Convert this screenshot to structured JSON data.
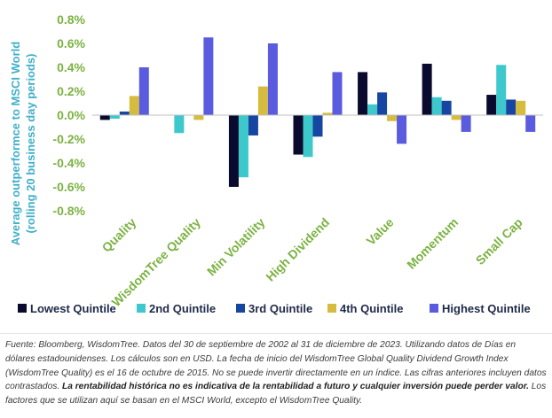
{
  "chart_data": {
    "type": "bar",
    "ylabel_line1": "Average outperformce to MSCI World",
    "ylabel_line2": "(rolling 20 business day periods)",
    "ylim": [
      -0.8,
      0.8
    ],
    "yticks": [
      "0.8%",
      "0.6%",
      "0.4%",
      "0.2%",
      "0.0%",
      "-0.2%",
      "-0.4%",
      "-0.6%",
      "-0.8%"
    ],
    "ytick_values": [
      0.8,
      0.6,
      0.4,
      0.2,
      0.0,
      -0.2,
      -0.4,
      -0.6,
      -0.8
    ],
    "categories": [
      "Quality",
      "WisdomTree Quality",
      "Min Volatility",
      "High Dividend",
      "Value",
      "Momentum",
      "Small Cap"
    ],
    "series": [
      {
        "name": "Lowest Quintile",
        "color": "#0a0a2e",
        "values": [
          -0.04,
          0.0,
          -0.6,
          -0.33,
          0.36,
          0.43,
          0.17
        ]
      },
      {
        "name": "2nd Quintile",
        "color": "#3dc8cc",
        "values": [
          -0.03,
          -0.15,
          -0.52,
          -0.35,
          0.09,
          0.15,
          0.42
        ]
      },
      {
        "name": "3rd Quintile",
        "color": "#1746a2",
        "values": [
          0.03,
          0.0,
          -0.17,
          -0.18,
          0.19,
          0.12,
          0.13
        ]
      },
      {
        "name": "4th Quintile",
        "color": "#d6bc3e",
        "values": [
          0.16,
          -0.04,
          0.24,
          0.02,
          -0.05,
          -0.04,
          0.12
        ]
      },
      {
        "name": "Highest Quintile",
        "color": "#5b5be0",
        "values": [
          0.4,
          0.65,
          0.6,
          0.36,
          -0.24,
          -0.14,
          -0.14
        ]
      }
    ]
  },
  "footnote": {
    "part1": "Fuente: Bloomberg, WisdomTree. Datos del 30 de septiembre de 2002 al 31 de diciembre de 2023. Utilizando datos de Días en dólares estadounidenses.  Los cálculos son en USD. La fecha de inicio del WisdomTree Global Quality Dividend Growth Index (WisdomTree Quality) es el 16 de octubre de 2015.  No se puede invertir directamente en un índice. Las cifras anteriores incluyen datos contrastados. ",
    "bold": "La rentabilidad histórica no es indicativa de la rentabilidad a futuro y cualquier inversión puede perder valor.",
    "part2": "  Los factores que se utilizan aquí se basan en el MSCI World, excepto el WisdomTree Quality."
  }
}
